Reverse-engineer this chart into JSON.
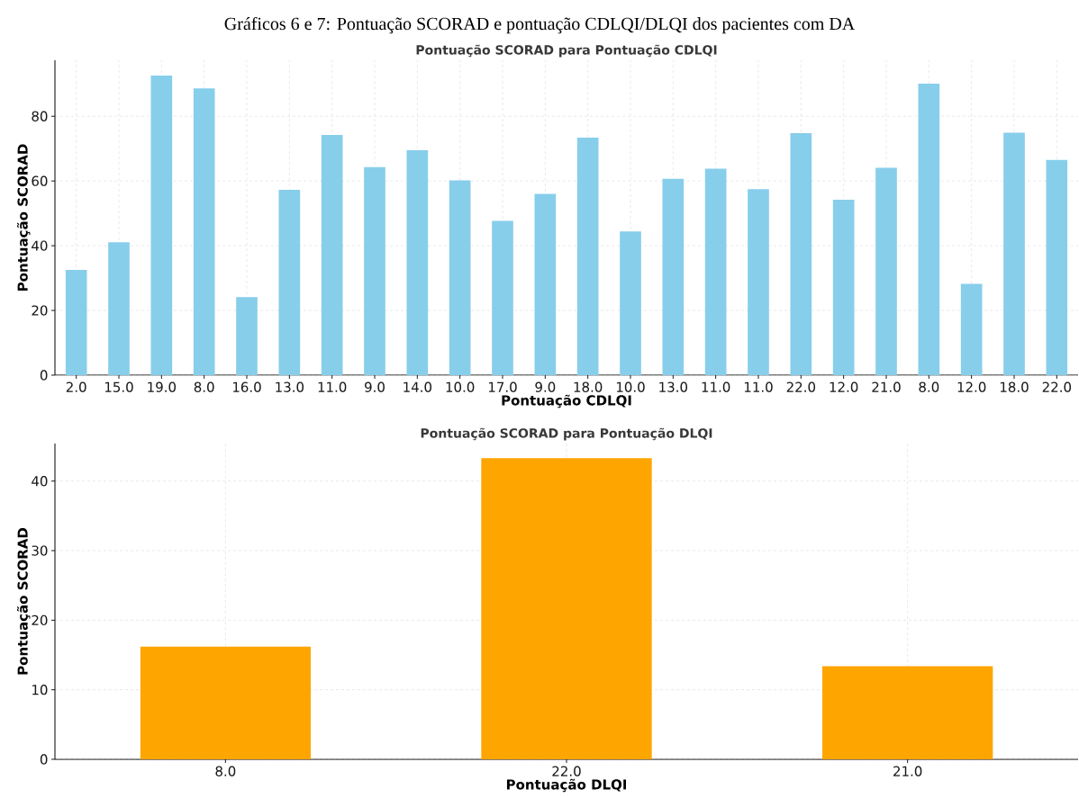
{
  "chart_data": [
    {
      "type": "bar",
      "title": "Gráficos 6 e 7: Pontuação SCORAD e pontuação CDLQI/DLQI dos pacientes com DA",
      "subtitle": "Pontuação SCORAD para Pontuação CDLQI",
      "xlabel": "Pontuação CDLQI",
      "ylabel": "Pontuação SCORAD",
      "categories": [
        "2.0",
        "15.0",
        "19.0",
        "8.0",
        "16.0",
        "13.0",
        "11.0",
        "9.0",
        "14.0",
        "10.0",
        "17.0",
        "9.0",
        "18.0",
        "10.0",
        "13.0",
        "11.0",
        "11.0",
        "22.0",
        "12.0",
        "21.0",
        "8.0",
        "12.0",
        "18.0",
        "22.0"
      ],
      "values": [
        32.5,
        41.1,
        92.6,
        88.6,
        24.1,
        57.3,
        74.2,
        64.3,
        69.5,
        60.2,
        47.7,
        56.0,
        73.4,
        44.4,
        60.7,
        63.8,
        57.5,
        74.8,
        54.2,
        64.1,
        90.1,
        28.2,
        74.9,
        66.5
      ],
      "color": "#87ceeb",
      "ylim": [
        0,
        97.3
      ],
      "yticks": [
        0,
        20,
        40,
        60,
        80
      ],
      "grid": true
    },
    {
      "type": "bar",
      "title": "Pontuação SCORAD para Pontuação DLQI",
      "xlabel": "Pontuação DLQI",
      "ylabel": "Pontuação SCORAD",
      "categories": [
        "8.0",
        "22.0",
        "21.0"
      ],
      "values": [
        16.2,
        43.3,
        13.4
      ],
      "color": "#ffa500",
      "ylim": [
        0,
        45.4
      ],
      "yticks": [
        0,
        10,
        20,
        30,
        40
      ],
      "grid": true
    }
  ]
}
